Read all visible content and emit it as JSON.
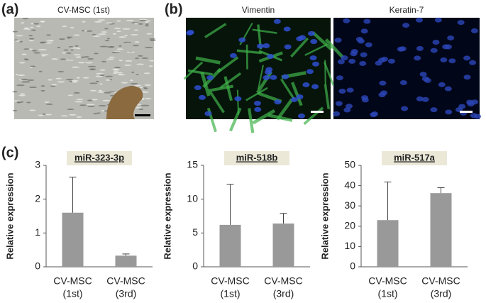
{
  "panels": {
    "a": {
      "label": "(a)",
      "caption": "CV-MSC (1st)"
    },
    "b": {
      "label": "(b)",
      "captions": [
        "Vimentin",
        "Keratin-7"
      ]
    },
    "c": {
      "label": "(c)"
    }
  },
  "chart_data": [
    {
      "type": "bar",
      "title": "miR-323-3p",
      "y_label": "Relative expression",
      "categories": [
        [
          "CV-MSC",
          "(1st)"
        ],
        [
          "CV-MSC",
          "(3rd)"
        ]
      ],
      "values": [
        1.6,
        0.33
      ],
      "errors": [
        1.05,
        0.05
      ],
      "color": "#999999",
      "ylim": [
        0,
        3
      ],
      "yticks": [
        0,
        1,
        2,
        3
      ]
    },
    {
      "type": "bar",
      "title": "miR-518b",
      "y_label": "Relative expression",
      "categories": [
        [
          "CV-MSC",
          "(1st)"
        ],
        [
          "CV-MSC",
          "(3rd)"
        ]
      ],
      "values": [
        6.2,
        6.4
      ],
      "errors": [
        6.0,
        1.5
      ],
      "color": "#999999",
      "ylim": [
        0,
        15
      ],
      "yticks": [
        0,
        5,
        10,
        15
      ]
    },
    {
      "type": "bar",
      "title": "miR-517a",
      "y_label": "Relative expression",
      "categories": [
        [
          "CV-MSC",
          "(1st)"
        ],
        [
          "CV-MSC",
          "(3rd)"
        ]
      ],
      "values": [
        23,
        36.3
      ],
      "errors": [
        18.8,
        2.7
      ],
      "color": "#999999",
      "ylim": [
        0,
        50
      ],
      "yticks": [
        0,
        10,
        20,
        30,
        40,
        50
      ]
    }
  ]
}
